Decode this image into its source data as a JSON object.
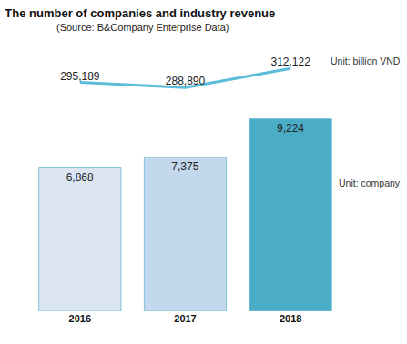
{
  "chart_data": {
    "type": "bar",
    "title": "The number of companies and industry revenue",
    "subtitle": "(Source: B&Company Enterprise Data)",
    "categories": [
      "2016",
      "2017",
      "2018"
    ],
    "series": [
      {
        "type": "bar",
        "colors": [
          "#dce6f2",
          "#c3d8ed",
          "#4bacc6"
        ],
        "values": [
          6868,
          7375,
          9224
        ],
        "value_labels": [
          "6,868",
          "7,375",
          "9,224"
        ],
        "annotation": "Unit: company"
      },
      {
        "type": "line",
        "axis": "y2",
        "color": "#5bbcd9",
        "values": [
          295189,
          288890,
          312122
        ],
        "value_labels": [
          "295,189",
          "288,890",
          "312,122"
        ],
        "annotation": "Unit: billion VND"
      }
    ],
    "ylim": [
      0,
      12300
    ],
    "y2lim": [
      17000,
      329000
    ],
    "data_labels": true,
    "tick_labels": "x",
    "grid": false
  }
}
